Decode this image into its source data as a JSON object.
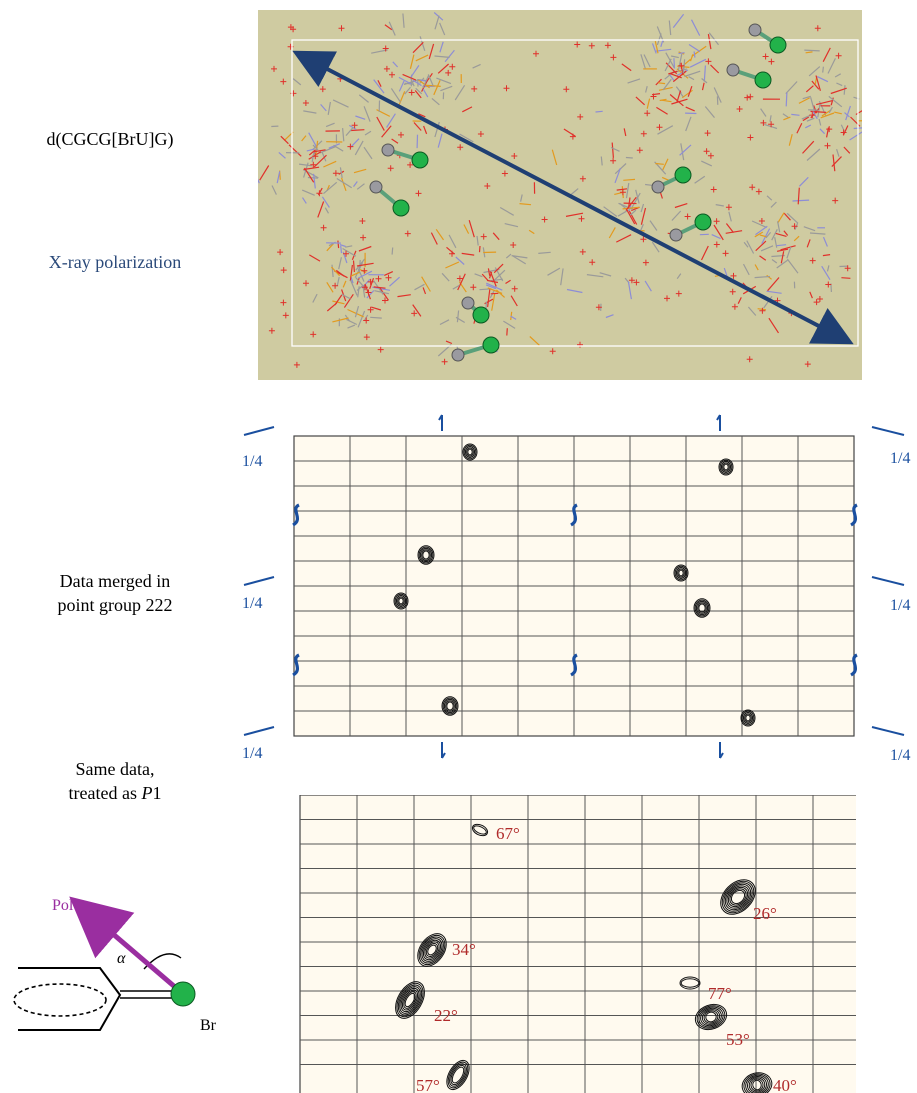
{
  "labels": {
    "molecule": "d(CGCG[BrU]G)",
    "polarization": "X-ray polarization",
    "merged_line1": "Data merged in",
    "merged_line2": "point group 222",
    "same_line1": "Same data,",
    "same_line2_prefix": "treated as ",
    "same_line2_italic": "P",
    "same_line2_suffix": "1",
    "pol": "Pol",
    "alpha": "α",
    "br": "Br"
  },
  "quarter_marks": [
    "1/4",
    "1/4",
    "1/4",
    "1/4",
    "1/4",
    "1/4"
  ],
  "angles": [
    "67°",
    "26°",
    "34°",
    "77°",
    "22°",
    "53°",
    "57°",
    "40°"
  ],
  "colors": {
    "crystal_bg": "#cfcba1",
    "map_bg": "#fffaef",
    "arrow_blue": "#1f3f73",
    "symbol_blue": "#1a4f9f",
    "angle_red": "#b02a2a",
    "pol_purple": "#9a2ea0",
    "br_green": "#22b24a"
  }
}
